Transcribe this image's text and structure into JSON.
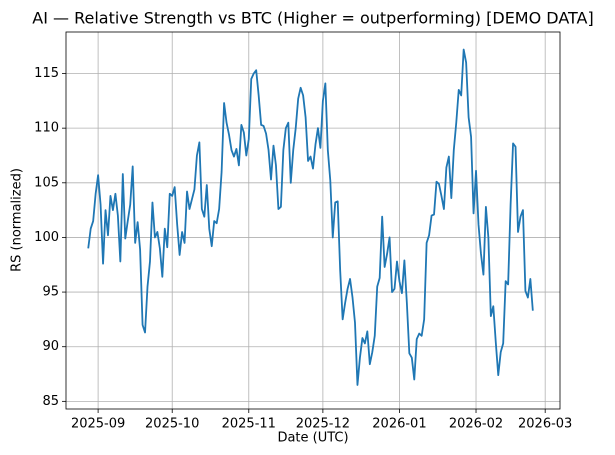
{
  "chart_data": {
    "type": "line",
    "title": "AI — Relative Strength vs BTC (Higher = outperforming) [DEMO DATA]",
    "x_label": "Date (UTC)",
    "y_label": "RS (normalized)",
    "color": "#1f77b4",
    "grid": true,
    "x": [
      "2025-08-28",
      "2025-08-29",
      "2025-08-30",
      "2025-08-31",
      "2025-09-01",
      "2025-09-02",
      "2025-09-03",
      "2025-09-04",
      "2025-09-05",
      "2025-09-06",
      "2025-09-07",
      "2025-09-08",
      "2025-09-09",
      "2025-09-10",
      "2025-09-11",
      "2025-09-12",
      "2025-09-13",
      "2025-09-14",
      "2025-09-15",
      "2025-09-16",
      "2025-09-17",
      "2025-09-18",
      "2025-09-19",
      "2025-09-20",
      "2025-09-21",
      "2025-09-22",
      "2025-09-23",
      "2025-09-24",
      "2025-09-25",
      "2025-09-26",
      "2025-09-27",
      "2025-09-28",
      "2025-09-29",
      "2025-09-30",
      "2025-10-01",
      "2025-10-02",
      "2025-10-03",
      "2025-10-04",
      "2025-10-05",
      "2025-10-06",
      "2025-10-07",
      "2025-10-08",
      "2025-10-09",
      "2025-10-10",
      "2025-10-11",
      "2025-10-12",
      "2025-10-13",
      "2025-10-14",
      "2025-10-15",
      "2025-10-16",
      "2025-10-17",
      "2025-10-18",
      "2025-10-19",
      "2025-10-20",
      "2025-10-21",
      "2025-10-22",
      "2025-10-23",
      "2025-10-24",
      "2025-10-25",
      "2025-10-26",
      "2025-10-27",
      "2025-10-28",
      "2025-10-29",
      "2025-10-30",
      "2025-10-31",
      "2025-11-01",
      "2025-11-02",
      "2025-11-03",
      "2025-11-04",
      "2025-11-05",
      "2025-11-06",
      "2025-11-07",
      "2025-11-08",
      "2025-11-09",
      "2025-11-10",
      "2025-11-11",
      "2025-11-12",
      "2025-11-13",
      "2025-11-14",
      "2025-11-15",
      "2025-11-16",
      "2025-11-17",
      "2025-11-18",
      "2025-11-19",
      "2025-11-20",
      "2025-11-21",
      "2025-11-22",
      "2025-11-23",
      "2025-11-24",
      "2025-11-25",
      "2025-11-26",
      "2025-11-27",
      "2025-11-28",
      "2025-11-29",
      "2025-11-30",
      "2025-12-01",
      "2025-12-02",
      "2025-12-03",
      "2025-12-04",
      "2025-12-05",
      "2025-12-06",
      "2025-12-07",
      "2025-12-08",
      "2025-12-09",
      "2025-12-10",
      "2025-12-11",
      "2025-12-12",
      "2025-12-13",
      "2025-12-14",
      "2025-12-15",
      "2025-12-16",
      "2025-12-17",
      "2025-12-18",
      "2025-12-19",
      "2025-12-20",
      "2025-12-21",
      "2025-12-22",
      "2025-12-23",
      "2025-12-24",
      "2025-12-25",
      "2025-12-26",
      "2025-12-27",
      "2025-12-28",
      "2025-12-29",
      "2025-12-30",
      "2025-12-31",
      "2026-01-01",
      "2026-01-02",
      "2026-01-03",
      "2026-01-04",
      "2026-01-05",
      "2026-01-06",
      "2026-01-07",
      "2026-01-08",
      "2026-01-09",
      "2026-01-10",
      "2026-01-11",
      "2026-01-12",
      "2026-01-13",
      "2026-01-14",
      "2026-01-15",
      "2026-01-16",
      "2026-01-17",
      "2026-01-18",
      "2026-01-19",
      "2026-01-20",
      "2026-01-21",
      "2026-01-22",
      "2026-01-23",
      "2026-01-24",
      "2026-01-25",
      "2026-01-26",
      "2026-01-27",
      "2026-01-28",
      "2026-01-29",
      "2026-01-30",
      "2026-01-31",
      "2026-02-01",
      "2026-02-02",
      "2026-02-03",
      "2026-02-04",
      "2026-02-05",
      "2026-02-06",
      "2026-02-07",
      "2026-02-08",
      "2026-02-09",
      "2026-02-10",
      "2026-02-11",
      "2026-02-12",
      "2026-02-13",
      "2026-02-14",
      "2026-02-15",
      "2026-02-16",
      "2026-02-17",
      "2026-02-18",
      "2026-02-19",
      "2026-02-20",
      "2026-02-21",
      "2026-02-22",
      "2026-02-23",
      "2026-02-24"
    ],
    "values": [
      99,
      100.8,
      101.5,
      104,
      105.7,
      103,
      97.6,
      102.5,
      100.2,
      103.8,
      102.5,
      104,
      102,
      97.8,
      105.8,
      99.9,
      101.5,
      103,
      106.5,
      99.5,
      101.4,
      98.9,
      92,
      91.3,
      95.5,
      97.8,
      103.2,
      100,
      100.5,
      99,
      96.4,
      100.8,
      99.1,
      104,
      103.8,
      104.6,
      101.2,
      98.4,
      100.5,
      99.5,
      104.2,
      102.6,
      103.5,
      104.4,
      107.5,
      108.7,
      102.6,
      101.9,
      104.8,
      100.8,
      99.2,
      101.5,
      101.3,
      102.6,
      106,
      112.3,
      110.5,
      109.4,
      108,
      107.4,
      108.1,
      106.6,
      110.3,
      109.6,
      107.5,
      109,
      114.5,
      115,
      115.3,
      113,
      110.3,
      110.2,
      109.5,
      108,
      105.3,
      108.4,
      106.6,
      102.6,
      102.8,
      108,
      110,
      110.5,
      105,
      108,
      110,
      112.7,
      113.7,
      113,
      111,
      107,
      107.4,
      106.3,
      108.5,
      110,
      108.2,
      112.5,
      114.1,
      108,
      105.2,
      100,
      103.2,
      103.3,
      97,
      92.5,
      94,
      95.3,
      96.2,
      94.5,
      92.2,
      86.5,
      89,
      90.8,
      90.3,
      91.4,
      88.4,
      89.5,
      91,
      95.5,
      96.3,
      101.9,
      97.3,
      98.5,
      100,
      95,
      95.3,
      97.8,
      96,
      94.9,
      97.9,
      94,
      89.4,
      89,
      87,
      90.7,
      91.2,
      91,
      92.5,
      99.5,
      100.2,
      102,
      102.1,
      105.1,
      104.9,
      103.8,
      102.6,
      106.4,
      107.4,
      103.6,
      108,
      110.5,
      113.5,
      113,
      117.2,
      116,
      111,
      109.2,
      102.2,
      106.1,
      101.2,
      98.5,
      96.6,
      102.8,
      100,
      92.8,
      93.7,
      90.4,
      87.4,
      89.5,
      90.3,
      96,
      95.7,
      103,
      108.6,
      108.3,
      100.5,
      101.9,
      102.5,
      95.1,
      94.5,
      96.2,
      93.3
    ],
    "xlim": [
      "2025-08-19",
      "2026-03-07"
    ],
    "xticks": [
      {
        "value": "2025-09-01",
        "label": "2025-09"
      },
      {
        "value": "2025-10-01",
        "label": "2025-10"
      },
      {
        "value": "2025-11-01",
        "label": "2025-11"
      },
      {
        "value": "2025-12-01",
        "label": "2025-12"
      },
      {
        "value": "2026-01-01",
        "label": "2026-01"
      },
      {
        "value": "2026-02-01",
        "label": "2026-02"
      },
      {
        "value": "2026-03-01",
        "label": "2026-03"
      }
    ],
    "ylim": [
      84.3,
      118.8
    ],
    "yticks": [
      85,
      90,
      95,
      100,
      105,
      110,
      115
    ]
  }
}
